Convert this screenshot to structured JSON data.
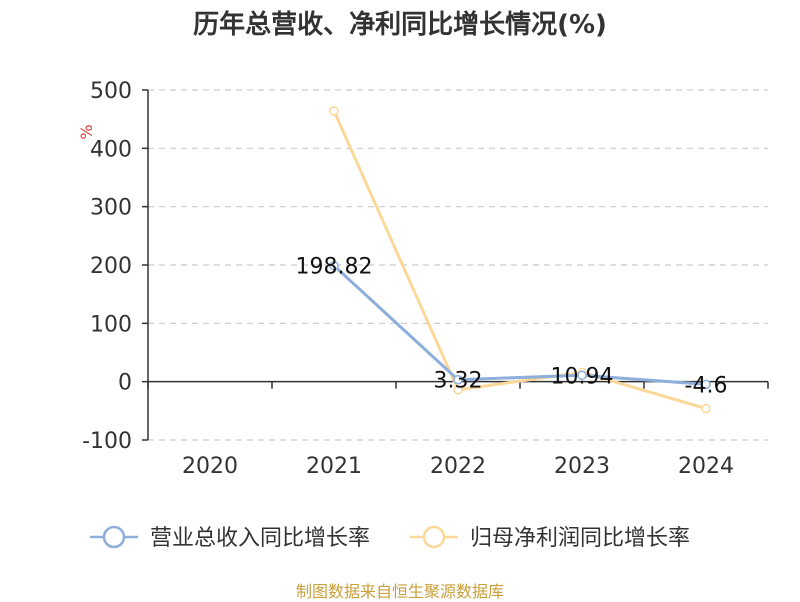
{
  "title": "历年总营收、净利同比增长情况(%)",
  "source": "制图数据来自恒生聚源数据库",
  "chart_data": {
    "type": "line",
    "title": "历年总营收、净利同比增长情况(%)",
    "ylabel": "%",
    "ylim": [
      -100,
      500
    ],
    "yticks": [
      -100,
      0,
      100,
      200,
      300,
      400,
      500
    ],
    "categories": [
      "2020",
      "2021",
      "2022",
      "2023",
      "2024"
    ],
    "grid": true,
    "legend_position": "bottom",
    "series": [
      {
        "name": "营业总收入同比增长率",
        "color": "#8eaedb",
        "values": [
          null,
          198.82,
          3.32,
          10.94,
          -4.6
        ],
        "labels": [
          "",
          "198.82",
          "3.32",
          "10.94",
          "-4.6"
        ]
      },
      {
        "name": "归母净利润同比增长率",
        "color": "#fbd89a",
        "values": [
          null,
          464,
          -14,
          16,
          -46
        ],
        "labels": [
          "",
          "",
          "",
          "",
          ""
        ]
      }
    ]
  }
}
